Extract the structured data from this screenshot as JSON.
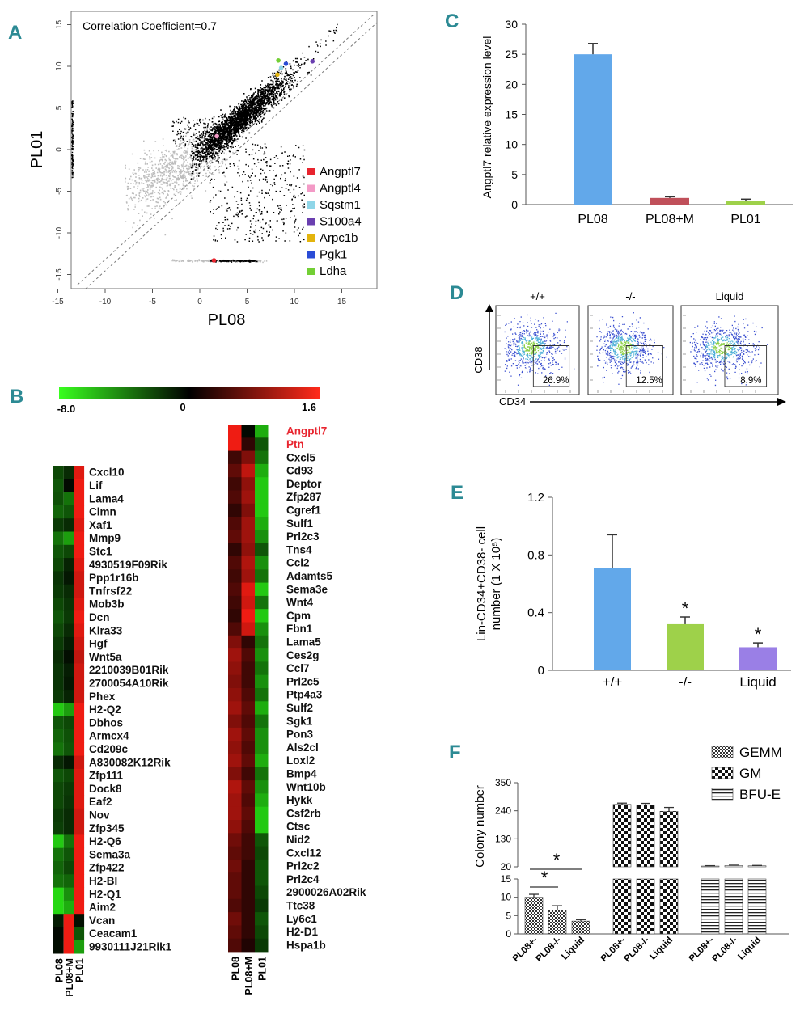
{
  "figure": {
    "panel_labels": [
      "A",
      "B",
      "C",
      "D",
      "E",
      "F"
    ]
  },
  "chart_data": [
    {
      "panel": "A",
      "type": "scatter",
      "title": "Correlation Coefficient=0.7",
      "xlabel": "PL08",
      "ylabel": "PL01",
      "xlim": [
        -16,
        16
      ],
      "ylim": [
        -16,
        16
      ],
      "xticks": [
        "-15",
        "-10",
        "-5",
        "0",
        "5",
        "10",
        "15"
      ],
      "yticks": [
        "-15",
        "-10",
        "-5",
        "0",
        "5",
        "10",
        "15"
      ],
      "legend": [
        {
          "name": "Angptl7",
          "color": "#e8242e"
        },
        {
          "name": "Angptl4",
          "color": "#f39ac6"
        },
        {
          "name": "Sqstm1",
          "color": "#8fd6e8"
        },
        {
          "name": "S100a4",
          "color": "#6a3fb0"
        },
        {
          "name": "Arpc1b",
          "color": "#e3b40d"
        },
        {
          "name": "Pgk1",
          "color": "#2a4cd6"
        },
        {
          "name": "Ldha",
          "color": "#73cf35"
        }
      ],
      "highlighted_points": [
        {
          "name": "Angptl7",
          "x": 1.5,
          "y": -13.3
        },
        {
          "name": "Angptl4",
          "x": 1.8,
          "y": 1.6
        },
        {
          "name": "Sqstm1",
          "x": 8.6,
          "y": 9.8
        },
        {
          "name": "S100a4",
          "x": 11.9,
          "y": 10.6
        },
        {
          "name": "Arpc1b",
          "x": 8.2,
          "y": 9.0
        },
        {
          "name": "Pgk1",
          "x": 9.1,
          "y": 10.3
        },
        {
          "name": "Ldha",
          "x": 8.3,
          "y": 10.7
        }
      ],
      "point_colors": {
        "main": "#000000",
        "low": "#bdbdbd"
      }
    },
    {
      "panel": "B",
      "type": "heatmap",
      "scale": {
        "min": "-8.0",
        "mid": "0",
        "max": "1.6",
        "colors": [
          "#39ff1f",
          "#000000",
          "#ff2a1a"
        ]
      },
      "columns": [
        "PL08",
        "PL08+M",
        "PL01"
      ],
      "left_genes": [
        "Cxcl10",
        "Lif",
        "Lama4",
        "Clmn",
        "Xaf1",
        "Mmp9",
        "Stc1",
        "4930519F09Rik",
        "Ppp1r16b",
        "Tnfrsf22",
        "Mob3b",
        "Dcn",
        "Klra33",
        "Hgf",
        "Wnt5a",
        "2210039B01Rik",
        "2700054A10Rik",
        "Phex",
        "H2-Q2",
        "Dbhos",
        "Armcx4",
        "Cd209c",
        "A830082K12Rik",
        "Zfp111",
        "Dock8",
        "Eaf2",
        "Nov",
        "Zfp345",
        "H2-Q6",
        "Sema3a",
        "Zfp422",
        "H2-Bl",
        "H2-Q1",
        "Aim2",
        "Vcan",
        "Ceacam1",
        "9930111J21Rik1"
      ],
      "left_values": [
        [
          -2.5,
          -1.5,
          1.4
        ],
        [
          -3,
          -0.3,
          1.5
        ],
        [
          -2.8,
          -4,
          1.5
        ],
        [
          -3.5,
          -3,
          1.5
        ],
        [
          -2,
          -1.5,
          1.4
        ],
        [
          -4,
          -5.5,
          1.5
        ],
        [
          -3,
          -2.5,
          1.5
        ],
        [
          -2.5,
          -1.2,
          1.4
        ],
        [
          -1.8,
          -0.8,
          1.3
        ],
        [
          -2,
          -1.5,
          1.3
        ],
        [
          -2.5,
          -1.8,
          1.4
        ],
        [
          -3,
          -2,
          1.5
        ],
        [
          -2.5,
          -1.5,
          1.4
        ],
        [
          -2,
          -1,
          1.3
        ],
        [
          -1.5,
          -0.5,
          1.2
        ],
        [
          -1.8,
          -1,
          1.3
        ],
        [
          -1.8,
          -0.8,
          1.3
        ],
        [
          -2,
          -1.2,
          1.3
        ],
        [
          -7,
          -5.5,
          1.5
        ],
        [
          -3,
          -2.5,
          1.5
        ],
        [
          -3.5,
          -2.8,
          1.5
        ],
        [
          -4,
          -3,
          1.5
        ],
        [
          -1.5,
          -0.8,
          1.3
        ],
        [
          -3,
          -2.5,
          1.4
        ],
        [
          -2.5,
          -2,
          1.4
        ],
        [
          -2.5,
          -1.8,
          1.4
        ],
        [
          -2,
          -1.5,
          1.3
        ],
        [
          -2.2,
          -1.5,
          1.3
        ],
        [
          -7,
          -4,
          1.5
        ],
        [
          -4,
          -3,
          1.5
        ],
        [
          -3.5,
          -2.5,
          1.5
        ],
        [
          -4,
          -3.5,
          1.5
        ],
        [
          -7.5,
          -5,
          1.5
        ],
        [
          -7.5,
          -6,
          1.5
        ],
        [
          -1,
          1.5,
          -0.6
        ],
        [
          -0.3,
          1.5,
          -3
        ],
        [
          -0.5,
          1.5,
          -5.5
        ]
      ],
      "right_genes": [
        "Angptl7",
        "Ptn",
        "Cxcl5",
        "Cd93",
        "Deptor",
        "Zfp287",
        "Cgref1",
        "Sulf1",
        "Prl2c3",
        "Tns4",
        "Ccl2",
        "Adamts5",
        "Sema3e",
        "Wnt4",
        "Cpm",
        "Fbn1",
        "Lama5",
        "Ces2g",
        "Ccl7",
        "Prl2c5",
        "Ptp4a3",
        "Sulf2",
        "Sgk1",
        "Pon3",
        "Als2cl",
        "Loxl2",
        "Bmp4",
        "Wnt10b",
        "Hykk",
        "Csf2rb",
        "Ctsc",
        "Nid2",
        "Cxcl12",
        "Prl2c2",
        "Prl2c4",
        "2900026A02Rik",
        "Ttc38",
        "Ly6c1",
        "H2-D1",
        "Hspa1b"
      ],
      "right_highlight": [
        "Angptl7",
        "Ptn"
      ],
      "right_values": [
        [
          1.5,
          -0.3,
          -6
        ],
        [
          1.5,
          0.3,
          -3
        ],
        [
          0.4,
          0.8,
          -4
        ],
        [
          0.6,
          1.2,
          -6
        ],
        [
          0.4,
          0.9,
          -7
        ],
        [
          0.5,
          1.0,
          -7
        ],
        [
          0.3,
          0.8,
          -7
        ],
        [
          0.5,
          1.0,
          -6
        ],
        [
          0.6,
          1.0,
          -5
        ],
        [
          0.3,
          0.9,
          -3
        ],
        [
          0.5,
          1.1,
          -5
        ],
        [
          0.4,
          1.0,
          -4
        ],
        [
          0.5,
          1.4,
          -7
        ],
        [
          0.4,
          1.3,
          -4
        ],
        [
          0.3,
          1.5,
          -7
        ],
        [
          0.5,
          1.3,
          -5
        ],
        [
          0.8,
          0.3,
          -4
        ],
        [
          1.0,
          0.5,
          -5
        ],
        [
          0.9,
          0.4,
          -4
        ],
        [
          0.8,
          0.4,
          -5
        ],
        [
          0.9,
          0.5,
          -4
        ],
        [
          1.0,
          0.6,
          -6
        ],
        [
          0.8,
          0.5,
          -4
        ],
        [
          1.0,
          0.6,
          -5
        ],
        [
          0.9,
          0.5,
          -5
        ],
        [
          1.0,
          0.6,
          -6
        ],
        [
          0.8,
          0.4,
          -4
        ],
        [
          1.1,
          0.6,
          -5
        ],
        [
          1.0,
          0.5,
          -6
        ],
        [
          1.0,
          0.6,
          -7
        ],
        [
          0.9,
          0.5,
          -7
        ],
        [
          0.7,
          0.4,
          -3
        ],
        [
          0.6,
          0.4,
          -2.5
        ],
        [
          0.7,
          0.3,
          -3
        ],
        [
          0.6,
          0.3,
          -3
        ],
        [
          0.6,
          0.3,
          -2.5
        ],
        [
          0.5,
          0.3,
          -2
        ],
        [
          0.7,
          0.3,
          -3
        ],
        [
          0.6,
          0.3,
          -2.5
        ],
        [
          0.5,
          0.2,
          -2
        ]
      ]
    },
    {
      "panel": "C",
      "type": "bar",
      "categories": [
        "PL08",
        "PL08+M",
        "PL01"
      ],
      "values": [
        25,
        1.1,
        0.6
      ],
      "errors": [
        1.8,
        0.2,
        0.3
      ],
      "colors": [
        "#62a8ea",
        "#c0505a",
        "#9ed14a"
      ],
      "ylabel": "Angptl7 relative expression level",
      "ylim": [
        0,
        30
      ],
      "yticks": [
        "0",
        "5",
        "10",
        "15",
        "20",
        "25",
        "30"
      ]
    },
    {
      "panel": "D",
      "type": "scatter",
      "subtype": "flow-cytometry",
      "plots": [
        {
          "title": "+/+",
          "gate_percent": "26.9%"
        },
        {
          "title": "-/-",
          "gate_percent": "12.5%"
        },
        {
          "title": "Liquid",
          "gate_percent": "8.9%"
        }
      ],
      "xlabel": "CD34",
      "ylabel": "CD38"
    },
    {
      "panel": "E",
      "type": "bar",
      "categories": [
        "+/+",
        "-/-",
        "Liquid"
      ],
      "values": [
        0.71,
        0.32,
        0.16
      ],
      "errors": [
        0.23,
        0.05,
        0.03
      ],
      "significance": [
        "",
        "*",
        "*"
      ],
      "colors": [
        "#62a8ea",
        "#9ed14a",
        "#9a7fe6"
      ],
      "ylabel_line1": "Lin-CD34+CD38- cell",
      "ylabel_line2": "number (1 X 10⁵)",
      "ylim": [
        0,
        1.2
      ],
      "yticks": [
        "0",
        "0.4",
        "0.8",
        "1.2"
      ]
    },
    {
      "panel": "F",
      "type": "bar",
      "groups": [
        "GEMM",
        "GM",
        "BFU-E"
      ],
      "categories": [
        "PL08+-",
        "PL08-/-",
        "Liquid"
      ],
      "series": [
        {
          "name": "GEMM",
          "values": [
            10,
            6.5,
            3.5
          ],
          "errors": [
            0.8,
            1.2,
            0.4
          ]
        },
        {
          "name": "GM",
          "values": [
            265,
            262,
            238
          ],
          "errors": [
            5,
            7,
            15
          ]
        },
        {
          "name": "BFU-E",
          "values": [
            23,
            25,
            24
          ],
          "errors": [
            1.5,
            1.5,
            1.5
          ]
        }
      ],
      "ylabel": "Colony number",
      "yticks_upper": [
        "20",
        "130",
        "240",
        "350"
      ],
      "yticks_lower": [
        "0",
        "5",
        "10",
        "15"
      ],
      "broken_axis": true,
      "significance_marks": [
        "*",
        "*"
      ]
    }
  ]
}
